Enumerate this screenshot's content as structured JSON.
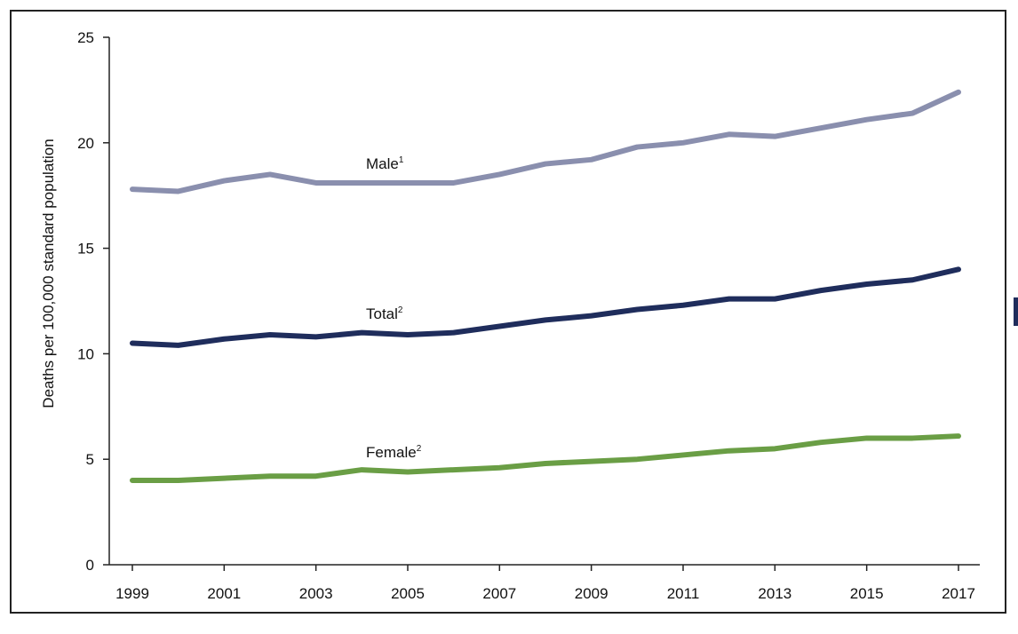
{
  "chart_data": {
    "type": "line",
    "title": "",
    "xlabel": "",
    "ylabel": "Deaths per 100,000 standard population",
    "x": [
      1999,
      2000,
      2001,
      2002,
      2003,
      2004,
      2005,
      2006,
      2007,
      2008,
      2009,
      2010,
      2011,
      2012,
      2013,
      2014,
      2015,
      2016,
      2017
    ],
    "xticks": [
      "1999",
      "2001",
      "2003",
      "2005",
      "2007",
      "2009",
      "2011",
      "2013",
      "2015",
      "2017"
    ],
    "yticks": [
      "0",
      "5",
      "10",
      "15",
      "20",
      "25"
    ],
    "ylim": [
      0,
      25
    ],
    "grid": false,
    "legend": "inline labels",
    "series": [
      {
        "name": "Male",
        "sup": "1",
        "color": "#8a8fae",
        "values": [
          17.8,
          17.7,
          18.2,
          18.5,
          18.1,
          18.1,
          18.1,
          18.1,
          18.5,
          19.0,
          19.2,
          19.8,
          20.0,
          20.4,
          20.3,
          20.7,
          21.1,
          21.4,
          22.4
        ]
      },
      {
        "name": "Total",
        "sup": "2",
        "color": "#1f2d5c",
        "values": [
          10.5,
          10.4,
          10.7,
          10.9,
          10.8,
          11.0,
          10.9,
          11.0,
          11.3,
          11.6,
          11.8,
          12.1,
          12.3,
          12.6,
          12.6,
          13.0,
          13.3,
          13.5,
          14.0
        ]
      },
      {
        "name": "Female",
        "sup": "2",
        "color": "#6a9e45",
        "values": [
          4.0,
          4.0,
          4.1,
          4.2,
          4.2,
          4.5,
          4.4,
          4.5,
          4.6,
          4.8,
          4.9,
          5.0,
          5.2,
          5.4,
          5.5,
          5.8,
          6.0,
          6.0,
          6.1
        ]
      }
    ]
  }
}
